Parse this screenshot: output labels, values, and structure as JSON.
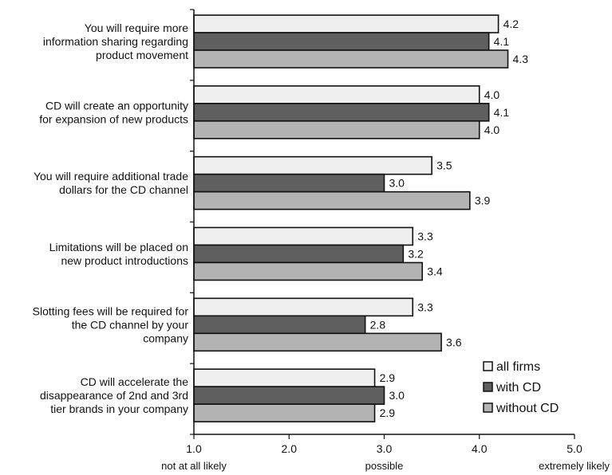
{
  "chart_data": {
    "type": "bar",
    "orientation": "horizontal",
    "categories": [
      [
        "You will require more",
        "information sharing regarding",
        "product movement"
      ],
      [
        "CD will create an opportunity",
        "for expansion of new products"
      ],
      [
        "You will require additional trade",
        "dollars for the CD channel"
      ],
      [
        "Limitations will be placed on",
        "new product introductions"
      ],
      [
        "Slotting fees will be required for",
        "the CD channel by your",
        "company"
      ],
      [
        "CD will accelerate the",
        "disappearance of 2nd and 3rd",
        "tier brands in your company"
      ]
    ],
    "series": [
      {
        "name": "all firms",
        "color": "#efefef",
        "values": [
          4.2,
          4.0,
          3.5,
          3.3,
          3.3,
          2.9
        ],
        "labels": [
          "4.2",
          "4.0",
          "3.5",
          "3.3",
          "3.3",
          "2.9"
        ]
      },
      {
        "name": "with CD",
        "color": "#5f5f5f",
        "values": [
          4.1,
          4.1,
          3.0,
          3.2,
          2.8,
          3.0
        ],
        "labels": [
          "4.1",
          "4.1",
          "3.0",
          "3.2",
          "2.8",
          "3.0"
        ]
      },
      {
        "name": "without CD",
        "color": "#b3b3b3",
        "values": [
          4.3,
          4.0,
          3.9,
          3.4,
          3.6,
          2.9
        ],
        "labels": [
          "4.3",
          "4.0",
          "3.9",
          "3.4",
          "3.6",
          "2.9"
        ]
      }
    ],
    "xlim": [
      1.0,
      5.0
    ],
    "xticks": [
      1.0,
      2.0,
      3.0,
      4.0,
      5.0
    ],
    "xtick_labels": [
      "1.0",
      "2.0",
      "3.0",
      "4.0",
      "5.0"
    ],
    "x_anchor_labels": [
      {
        "at": 1.0,
        "text": "not at all likely"
      },
      {
        "at": 3.0,
        "text": "possible"
      },
      {
        "at": 5.0,
        "text": "extremely likely"
      }
    ],
    "legend_position": "bottom-right",
    "grid": false
  }
}
